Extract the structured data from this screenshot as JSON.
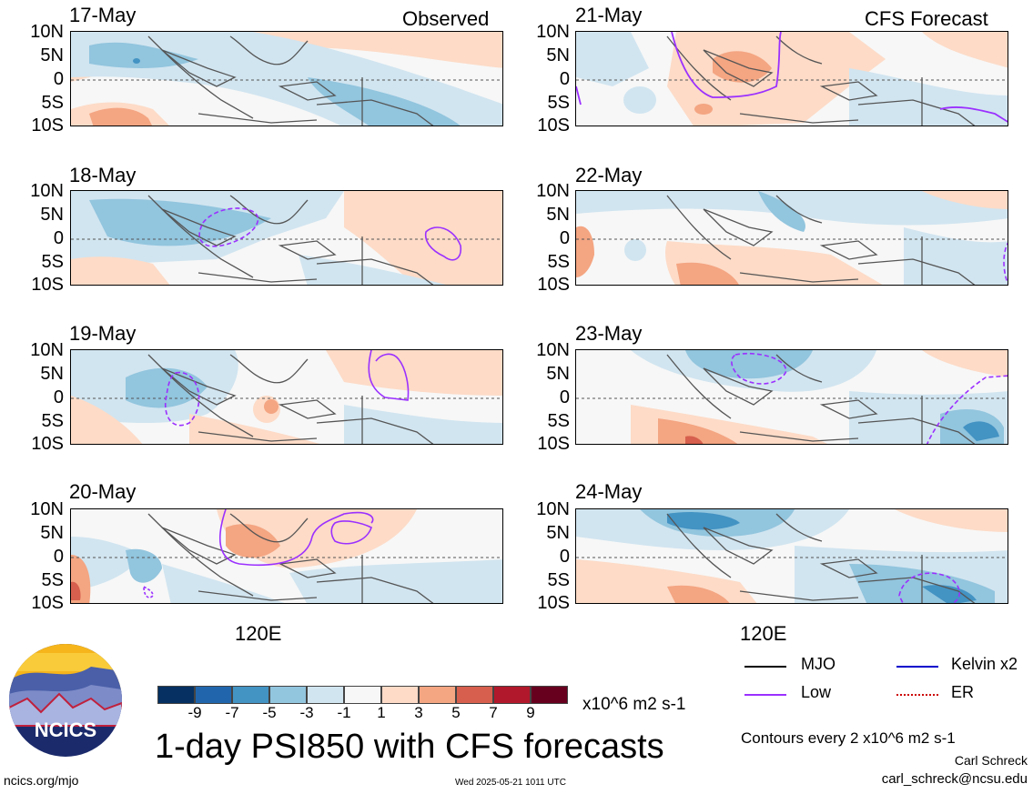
{
  "left_title": "Observed",
  "right_title": "CFS Forecast",
  "lat_labels": [
    "10N",
    "5N",
    "0",
    "5S",
    "10S"
  ],
  "x_label": "120E",
  "panels_left": [
    {
      "date": "17-May",
      "contours": [],
      "low": []
    },
    {
      "date": "18-May",
      "low": [
        "dashed-ellipse",
        "solid-ellipse"
      ]
    },
    {
      "date": "19-May",
      "low": [
        "dashed-ellipse",
        "solid-loop"
      ]
    },
    {
      "date": "20-May",
      "low": [
        "solid-line",
        "solid-loop",
        "dashed-small"
      ]
    }
  ],
  "panels_right": [
    {
      "date": "21-May",
      "low": [
        "solid-arc",
        "solid-corner"
      ]
    },
    {
      "date": "22-May",
      "low": [
        "dashed-edge"
      ]
    },
    {
      "date": "23-May",
      "low": [
        "dashed-ellipse",
        "dashed-arc"
      ]
    },
    {
      "date": "24-May",
      "low": [
        "dashed-ellipse"
      ]
    }
  ],
  "colorbar": {
    "colors": [
      "#053061",
      "#2166ac",
      "#4393c3",
      "#92c5de",
      "#d1e5f0",
      "#f7f7f7",
      "#fddbc7",
      "#f4a582",
      "#d6604d",
      "#b2182b",
      "#67001f"
    ],
    "labels": [
      "-9",
      "-7",
      "-5",
      "-3",
      "-1",
      "1",
      "3",
      "5",
      "7",
      "9"
    ],
    "units": "x10^6 m2 s-1"
  },
  "main_title": "1-day PSI850 with CFS forecasts",
  "legend": [
    {
      "label": "MJO",
      "color": "#000000",
      "style": "solid"
    },
    {
      "label": "Kelvin x2",
      "color": "#0000cc",
      "style": "solid"
    },
    {
      "label": "Low",
      "color": "#9b30ff",
      "style": "solid"
    },
    {
      "label": "ER",
      "color": "#cc0000",
      "style": "dotted"
    }
  ],
  "contour_note": "Contours every 2 x10^6 m2 s-1",
  "author": "Carl Schreck",
  "email": "carl_schreck@ncsu.edu",
  "url": "ncics.org/mjo",
  "timestamp": "Wed 2025-05-21 1011 UTC",
  "logo_text": "NCICS"
}
